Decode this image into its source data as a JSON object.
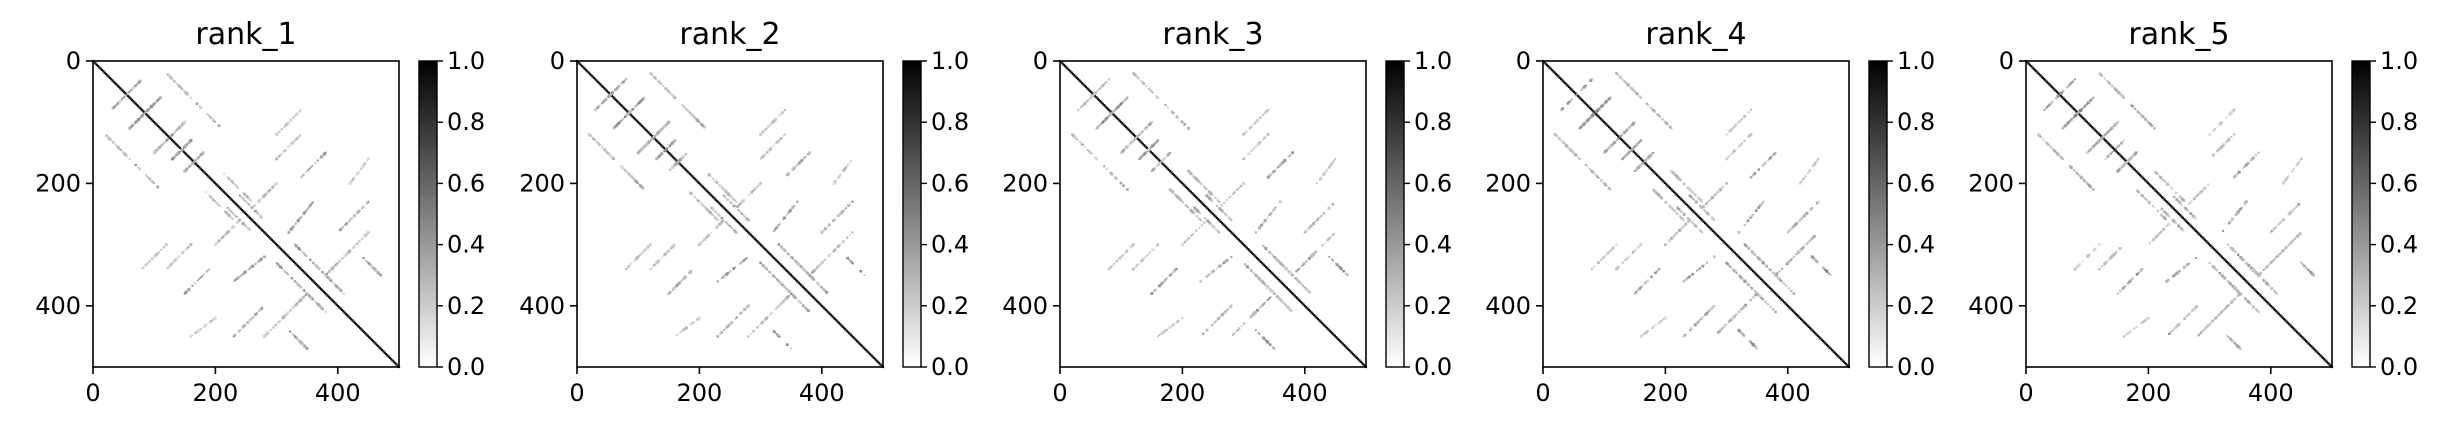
{
  "figure": {
    "background": "#ffffff",
    "axis_color": "#000000",
    "colormap": [
      "#ffffff",
      "#000000"
    ]
  },
  "chart_data": [
    {
      "type": "heatmap",
      "title": "rank_1",
      "xlim": [
        0,
        500
      ],
      "ylim": [
        500,
        0
      ],
      "x_ticks": [
        0,
        200,
        400
      ],
      "x_tick_labels": [
        "0",
        "200",
        "400"
      ],
      "y_ticks": [
        0,
        200,
        400
      ],
      "y_tick_labels": [
        "0",
        "200",
        "400"
      ],
      "colorbar": {
        "range": [
          0.0,
          1.0
        ],
        "ticks": [
          0.0,
          0.2,
          0.4,
          0.6,
          0.8,
          1.0
        ],
        "tick_labels": [
          "0.0",
          "0.2",
          "0.4",
          "0.6",
          "0.8",
          "1.0"
        ]
      },
      "matrix_size": 500,
      "description": "sparse contact map, strong diagonal, several anti-diagonal and parallel off-diagonal streaks",
      "streaks": [
        [
          0,
          0,
          500,
          500,
          0.95
        ],
        [
          30,
          80,
          60,
          50,
          0.45
        ],
        [
          60,
          110,
          110,
          60,
          0.5
        ],
        [
          130,
          160,
          160,
          130,
          0.45
        ],
        [
          100,
          150,
          150,
          100,
          0.4
        ],
        [
          150,
          180,
          180,
          150,
          0.45
        ],
        [
          20,
          120,
          60,
          160,
          0.35
        ],
        [
          70,
          170,
          110,
          210,
          0.4
        ],
        [
          180,
          210,
          230,
          260,
          0.35
        ],
        [
          220,
          240,
          260,
          280,
          0.4
        ],
        [
          300,
          120,
          340,
          80,
          0.3
        ],
        [
          340,
          190,
          380,
          150,
          0.45
        ],
        [
          200,
          300,
          240,
          260,
          0.35
        ],
        [
          230,
          360,
          280,
          320,
          0.45
        ],
        [
          300,
          330,
          350,
          380,
          0.45
        ],
        [
          330,
          360,
          380,
          410,
          0.4
        ],
        [
          380,
          350,
          420,
          310,
          0.45
        ],
        [
          400,
          280,
          450,
          230,
          0.4
        ],
        [
          440,
          320,
          470,
          350,
          0.5
        ],
        [
          280,
          450,
          320,
          410,
          0.35
        ],
        [
          160,
          450,
          200,
          420,
          0.3
        ],
        [
          120,
          340,
          160,
          300,
          0.3
        ]
      ]
    },
    {
      "type": "heatmap",
      "title": "rank_2",
      "xlim": [
        0,
        500
      ],
      "ylim": [
        500,
        0
      ],
      "x_ticks": [
        0,
        200,
        400
      ],
      "x_tick_labels": [
        "0",
        "200",
        "400"
      ],
      "y_ticks": [
        0,
        200,
        400
      ],
      "y_tick_labels": [
        "0",
        "200",
        "400"
      ],
      "colorbar": {
        "range": [
          0.0,
          1.0
        ],
        "ticks": [
          0.0,
          0.2,
          0.4,
          0.6,
          0.8,
          1.0
        ],
        "tick_labels": [
          "0.0",
          "0.2",
          "0.4",
          "0.6",
          "0.8",
          "1.0"
        ]
      },
      "matrix_size": 500,
      "description": "sparse contact map, strong diagonal, several anti-diagonal and parallel off-diagonal streaks",
      "streaks": [
        [
          0,
          0,
          500,
          500,
          0.95
        ],
        [
          30,
          80,
          60,
          50,
          0.45
        ],
        [
          60,
          110,
          110,
          60,
          0.5
        ],
        [
          130,
          160,
          160,
          130,
          0.45
        ],
        [
          100,
          150,
          150,
          100,
          0.4
        ],
        [
          150,
          180,
          180,
          150,
          0.45
        ],
        [
          20,
          120,
          60,
          160,
          0.35
        ],
        [
          70,
          170,
          110,
          210,
          0.4
        ],
        [
          180,
          210,
          230,
          260,
          0.35
        ],
        [
          220,
          240,
          260,
          280,
          0.4
        ],
        [
          300,
          120,
          340,
          80,
          0.3
        ],
        [
          340,
          190,
          380,
          150,
          0.45
        ],
        [
          200,
          300,
          240,
          260,
          0.35
        ],
        [
          230,
          360,
          280,
          320,
          0.45
        ],
        [
          300,
          330,
          350,
          380,
          0.45
        ],
        [
          330,
          360,
          380,
          410,
          0.4
        ],
        [
          380,
          350,
          420,
          310,
          0.45
        ],
        [
          400,
          280,
          450,
          230,
          0.4
        ],
        [
          440,
          320,
          470,
          350,
          0.5
        ],
        [
          280,
          450,
          320,
          410,
          0.35
        ],
        [
          160,
          450,
          200,
          420,
          0.3
        ],
        [
          120,
          340,
          160,
          300,
          0.3
        ]
      ]
    },
    {
      "type": "heatmap",
      "title": "rank_3",
      "xlim": [
        0,
        500
      ],
      "ylim": [
        500,
        0
      ],
      "x_ticks": [
        0,
        200,
        400
      ],
      "x_tick_labels": [
        "0",
        "200",
        "400"
      ],
      "y_ticks": [
        0,
        200,
        400
      ],
      "y_tick_labels": [
        "0",
        "200",
        "400"
      ],
      "colorbar": {
        "range": [
          0.0,
          1.0
        ],
        "ticks": [
          0.0,
          0.2,
          0.4,
          0.6,
          0.8,
          1.0
        ],
        "tick_labels": [
          "0.0",
          "0.2",
          "0.4",
          "0.6",
          "0.8",
          "1.0"
        ]
      },
      "matrix_size": 500,
      "description": "sparse contact map, strong diagonal, several anti-diagonal and parallel off-diagonal streaks",
      "streaks": [
        [
          0,
          0,
          500,
          500,
          0.95
        ],
        [
          30,
          80,
          60,
          50,
          0.45
        ],
        [
          60,
          110,
          110,
          60,
          0.5
        ],
        [
          130,
          160,
          160,
          130,
          0.45
        ],
        [
          100,
          150,
          150,
          100,
          0.4
        ],
        [
          150,
          180,
          180,
          150,
          0.45
        ],
        [
          20,
          120,
          60,
          160,
          0.35
        ],
        [
          70,
          170,
          110,
          210,
          0.4
        ],
        [
          180,
          210,
          230,
          260,
          0.35
        ],
        [
          220,
          240,
          260,
          280,
          0.4
        ],
        [
          300,
          120,
          340,
          80,
          0.3
        ],
        [
          340,
          190,
          380,
          150,
          0.45
        ],
        [
          200,
          300,
          240,
          260,
          0.35
        ],
        [
          230,
          360,
          280,
          320,
          0.45
        ],
        [
          300,
          330,
          350,
          380,
          0.45
        ],
        [
          330,
          360,
          380,
          410,
          0.4
        ],
        [
          380,
          350,
          420,
          310,
          0.45
        ],
        [
          400,
          280,
          450,
          230,
          0.4
        ],
        [
          440,
          320,
          470,
          350,
          0.5
        ],
        [
          280,
          450,
          320,
          410,
          0.35
        ],
        [
          160,
          450,
          200,
          420,
          0.3
        ],
        [
          120,
          340,
          160,
          300,
          0.3
        ]
      ]
    },
    {
      "type": "heatmap",
      "title": "rank_4",
      "xlim": [
        0,
        500
      ],
      "ylim": [
        500,
        0
      ],
      "x_ticks": [
        0,
        200,
        400
      ],
      "x_tick_labels": [
        "0",
        "200",
        "400"
      ],
      "y_ticks": [
        0,
        200,
        400
      ],
      "y_tick_labels": [
        "0",
        "200",
        "400"
      ],
      "colorbar": {
        "range": [
          0.0,
          1.0
        ],
        "ticks": [
          0.0,
          0.2,
          0.4,
          0.6,
          0.8,
          1.0
        ],
        "tick_labels": [
          "0.0",
          "0.2",
          "0.4",
          "0.6",
          "0.8",
          "1.0"
        ]
      },
      "matrix_size": 500,
      "description": "sparse contact map, strong diagonal, several anti-diagonal and parallel off-diagonal streaks",
      "streaks": [
        [
          0,
          0,
          500,
          500,
          0.95
        ],
        [
          30,
          80,
          60,
          50,
          0.45
        ],
        [
          60,
          110,
          110,
          60,
          0.5
        ],
        [
          130,
          160,
          160,
          130,
          0.45
        ],
        [
          100,
          150,
          150,
          100,
          0.4
        ],
        [
          150,
          180,
          180,
          150,
          0.45
        ],
        [
          20,
          120,
          60,
          160,
          0.35
        ],
        [
          70,
          170,
          110,
          210,
          0.4
        ],
        [
          180,
          210,
          230,
          260,
          0.35
        ],
        [
          220,
          240,
          260,
          280,
          0.4
        ],
        [
          300,
          120,
          340,
          80,
          0.3
        ],
        [
          340,
          190,
          380,
          150,
          0.45
        ],
        [
          200,
          300,
          240,
          260,
          0.35
        ],
        [
          230,
          360,
          280,
          320,
          0.45
        ],
        [
          300,
          330,
          350,
          380,
          0.45
        ],
        [
          330,
          360,
          380,
          410,
          0.4
        ],
        [
          380,
          350,
          420,
          310,
          0.45
        ],
        [
          400,
          280,
          450,
          230,
          0.4
        ],
        [
          440,
          320,
          470,
          350,
          0.5
        ],
        [
          280,
          450,
          320,
          410,
          0.35
        ],
        [
          160,
          450,
          200,
          420,
          0.3
        ],
        [
          120,
          340,
          160,
          300,
          0.3
        ]
      ]
    },
    {
      "type": "heatmap",
      "title": "rank_5",
      "xlim": [
        0,
        500
      ],
      "ylim": [
        500,
        0
      ],
      "x_ticks": [
        0,
        200,
        400
      ],
      "x_tick_labels": [
        "0",
        "200",
        "400"
      ],
      "y_ticks": [
        0,
        200,
        400
      ],
      "y_tick_labels": [
        "0",
        "200",
        "400"
      ],
      "colorbar": {
        "range": [
          0.0,
          1.0
        ],
        "ticks": [
          0.0,
          0.2,
          0.4,
          0.6,
          0.8,
          1.0
        ],
        "tick_labels": [
          "0.0",
          "0.2",
          "0.4",
          "0.6",
          "0.8",
          "1.0"
        ]
      },
      "matrix_size": 500,
      "description": "sparse contact map, strong diagonal, several anti-diagonal and parallel off-diagonal streaks",
      "streaks": [
        [
          0,
          0,
          500,
          500,
          0.95
        ],
        [
          30,
          80,
          60,
          50,
          0.45
        ],
        [
          60,
          110,
          110,
          60,
          0.5
        ],
        [
          130,
          160,
          160,
          130,
          0.45
        ],
        [
          100,
          150,
          150,
          100,
          0.4
        ],
        [
          150,
          180,
          180,
          150,
          0.45
        ],
        [
          20,
          120,
          60,
          160,
          0.35
        ],
        [
          70,
          170,
          110,
          210,
          0.4
        ],
        [
          180,
          210,
          230,
          260,
          0.35
        ],
        [
          220,
          240,
          260,
          280,
          0.4
        ],
        [
          300,
          120,
          340,
          80,
          0.3
        ],
        [
          340,
          190,
          380,
          150,
          0.45
        ],
        [
          200,
          300,
          240,
          260,
          0.35
        ],
        [
          230,
          360,
          280,
          320,
          0.45
        ],
        [
          300,
          330,
          350,
          380,
          0.45
        ],
        [
          330,
          360,
          380,
          410,
          0.4
        ],
        [
          380,
          350,
          420,
          310,
          0.45
        ],
        [
          400,
          280,
          450,
          230,
          0.4
        ],
        [
          440,
          320,
          470,
          350,
          0.5
        ],
        [
          280,
          450,
          320,
          410,
          0.35
        ],
        [
          160,
          450,
          200,
          420,
          0.3
        ],
        [
          120,
          340,
          160,
          300,
          0.3
        ]
      ]
    }
  ]
}
